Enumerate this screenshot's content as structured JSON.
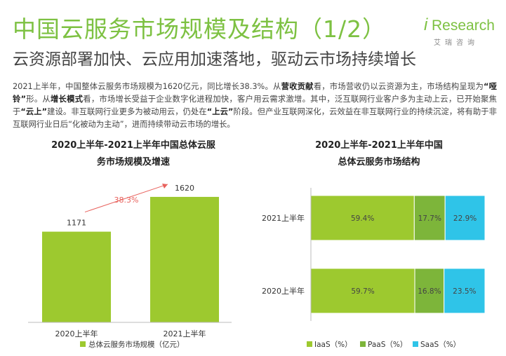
{
  "header": {
    "title": "中国云服务市场规模及结构（1/2）",
    "subtitle": "云资源部署加快、云应用加速落地，驱动云市场持续增长",
    "logo_i": "i",
    "logo_text": "Research",
    "logo_cn": "艾瑞咨询"
  },
  "paragraph": [
    {
      "t": "2021上半年，中国整体云服务市场规模为1620亿元，同比增长38.3%。从",
      "b": false
    },
    {
      "t": "营收贡献",
      "b": true
    },
    {
      "t": "看，市场营收仍以云资源为主，市场结构呈现为",
      "b": false
    },
    {
      "t": "“哑铃”",
      "b": true
    },
    {
      "t": "形。从",
      "b": false
    },
    {
      "t": "增长模式",
      "b": true
    },
    {
      "t": "看，市场增长受益于企业数字化进程加快，客户用云需求激增。其中，泛互联网行业客户多为主动上云，已开始聚焦于",
      "b": false
    },
    {
      "t": "“云上”",
      "b": true
    },
    {
      "t": "建设。非互联网行业更多为被动用云，仍处在",
      "b": false
    },
    {
      "t": "“上云”",
      "b": true
    },
    {
      "t": "阶段。但产业互联网深化，云效益在非互联网行业的持续沉淀，将有助于非互联网行业日后“化被动为主动”，进而持续带动云市场的增长。",
      "b": false
    }
  ],
  "chart_data": [
    {
      "type": "bar",
      "title_line1": "2020上半年-2021上半年中国总体云服",
      "title_line2": "务市场规模及增速",
      "categories": [
        "2020上半年",
        "2021上半年"
      ],
      "series": [
        {
          "name": "总体云服务市场规模（亿元）",
          "values": [
            1171,
            1620
          ]
        }
      ],
      "value_labels": [
        "1171",
        "1620"
      ],
      "growth_label": "38.3%",
      "legend_label": "总体云服务市场规模（亿元）",
      "legend_position": "bottom",
      "color": "#9dc92f",
      "growth_color": "#e8615c",
      "ylim": [
        0,
        1900
      ]
    },
    {
      "type": "bar",
      "orientation": "horizontal-stacked-100",
      "title_line1": "2020上半年-2021上半年中国",
      "title_line2": "总体云服务市场结构",
      "categories": [
        "2021上半年",
        "2020上半年"
      ],
      "series": [
        {
          "name": "IaaS（%）",
          "values": [
            59.4,
            59.7
          ],
          "labels": [
            "59.4%",
            "59.7%"
          ],
          "color": "#9dc92f"
        },
        {
          "name": "PaaS（%）",
          "values": [
            17.7,
            16.8
          ],
          "labels": [
            "17.7%",
            "16.8%"
          ],
          "color": "#7db53a"
        },
        {
          "name": "SaaS（%）",
          "values": [
            22.9,
            23.5
          ],
          "labels": [
            "22.9%",
            "23.5%"
          ],
          "color": "#2fc4e8"
        }
      ],
      "legend_position": "bottom",
      "xlim": [
        0,
        100
      ]
    }
  ]
}
